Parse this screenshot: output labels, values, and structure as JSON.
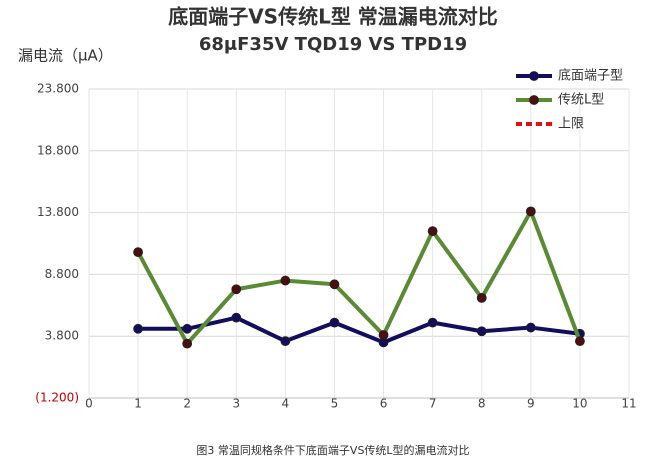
{
  "chart_data": {
    "type": "line",
    "title": "底面端子VS传统L型   常温漏电流对比",
    "subtitle": "68μF35V   TQD19 VS  TPD19",
    "y_label": "漏电流（μA）",
    "caption": "图3  常温同规格条件下底面端子VS传统L型的漏电流对比",
    "x": [
      1,
      2,
      3,
      4,
      5,
      6,
      7,
      8,
      9,
      10
    ],
    "xlim": [
      0,
      11
    ],
    "xticks": [
      0,
      1,
      2,
      3,
      4,
      5,
      6,
      7,
      8,
      9,
      10,
      11
    ],
    "ylim": [
      -1.2,
      23.8
    ],
    "yticks": [
      {
        "value": -1.2,
        "label": "(1.200)"
      },
      {
        "value": 3.8,
        "label": "3.800"
      },
      {
        "value": 8.8,
        "label": "8.800"
      },
      {
        "value": 13.8,
        "label": "13.800"
      },
      {
        "value": 18.8,
        "label": "18.800"
      },
      {
        "value": 23.8,
        "label": "23.800"
      }
    ],
    "negative_tick_color": "#c00000",
    "grid": true,
    "legend": "top-right",
    "series": [
      {
        "name": "底面端子型",
        "color": "#120d5c",
        "marker_color": "#120d5c",
        "dash": false,
        "values": [
          4.4,
          4.4,
          5.3,
          3.4,
          4.9,
          3.3,
          4.9,
          4.2,
          4.5,
          4.0
        ]
      },
      {
        "name": "传统L型",
        "color": "#5a8a34",
        "marker_color": "#4a0f0f",
        "dash": false,
        "values": [
          10.6,
          3.2,
          7.6,
          8.3,
          8.0,
          3.9,
          12.3,
          6.9,
          13.9,
          3.4
        ]
      },
      {
        "name": "上限",
        "color": "#e01010",
        "marker_color": null,
        "dash": true,
        "values": [
          null,
          null,
          null,
          null,
          null,
          null,
          null,
          null,
          null,
          null
        ]
      }
    ]
  }
}
